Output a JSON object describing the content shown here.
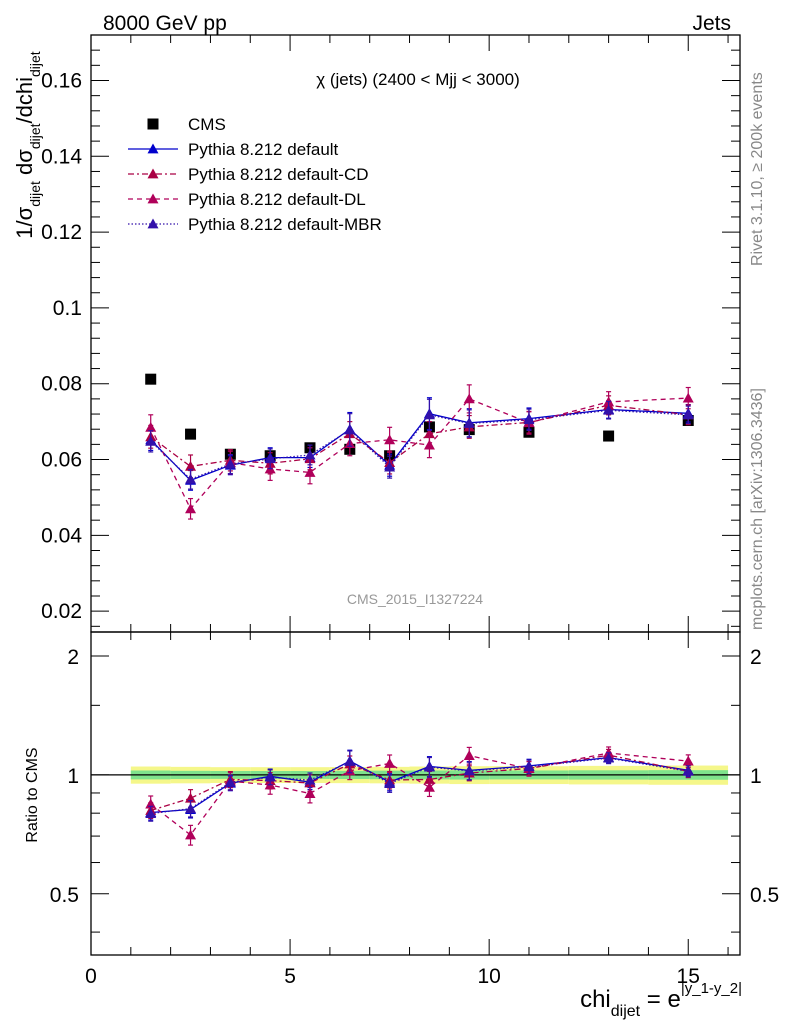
{
  "header": {
    "left": "8000 GeV pp",
    "right": "Jets"
  },
  "side_labels": {
    "top": "Rivet 3.1.10, ≥ 200k events",
    "bottom": "mcplots.cern.ch [arXiv:1306.3436]"
  },
  "watermark": "CMS_2015_I1327224",
  "chart_data": {
    "type": "scatter",
    "title": "χ (jets) (2400 < Mjj < 3000)",
    "x_axis": {
      "range": [
        0,
        16.3
      ],
      "ticks": [
        0,
        5,
        10,
        15
      ],
      "tick_labels": [
        "0",
        "5",
        "10",
        "15"
      ],
      "label_main": "chi",
      "label_sub": "dijet",
      "label_eq": " = e",
      "label_sup": "|y_1-y_2|"
    },
    "main_panel": {
      "y_axis": {
        "range": [
          0.0145,
          0.172
        ],
        "ticks": [
          0.02,
          0.04,
          0.06,
          0.08,
          0.1,
          0.12,
          0.14,
          0.16
        ],
        "tick_labels": [
          "0.02",
          "0.04",
          "0.06",
          "0.08",
          "0.1",
          "0.12",
          "0.14",
          "0.16"
        ],
        "label": "1/σdijet dσdijet/dchidijet"
      }
    },
    "ratio_panel": {
      "y_axis": {
        "scale": "log",
        "range": [
          0.35,
          2.3
        ],
        "ticks": [
          0.5,
          1,
          2
        ],
        "tick_labels": [
          "0.5",
          "1",
          "2"
        ],
        "label": "Ratio to CMS"
      }
    },
    "bins": [
      [
        1,
        2
      ],
      [
        2,
        3
      ],
      [
        3,
        4
      ],
      [
        4,
        5
      ],
      [
        5,
        6
      ],
      [
        6,
        7
      ],
      [
        7,
        8
      ],
      [
        8,
        9
      ],
      [
        9,
        10
      ],
      [
        10,
        12
      ],
      [
        12,
        14
      ],
      [
        14,
        16
      ]
    ],
    "data": {
      "name": "CMS",
      "x": [
        1.5,
        2.5,
        3.5,
        4.5,
        5.5,
        6.5,
        7.5,
        8.5,
        9.5,
        11,
        13,
        15
      ],
      "y": [
        0.0812,
        0.0667,
        0.0614,
        0.061,
        0.0631,
        0.0627,
        0.061,
        0.0686,
        0.0679,
        0.0672,
        0.0662,
        0.0703
      ],
      "ratio_band_inner": [
        0.026,
        0.024,
        0.023,
        0.023,
        0.023,
        0.024,
        0.025,
        0.026,
        0.027,
        0.026,
        0.027,
        0.028
      ],
      "ratio_band_outer": [
        0.05,
        0.048,
        0.046,
        0.046,
        0.046,
        0.047,
        0.048,
        0.05,
        0.052,
        0.052,
        0.054,
        0.056
      ]
    },
    "series": [
      {
        "name": "Pythia 8.212 default",
        "color": "#0000cc",
        "dash": "",
        "x": [
          1.5,
          2.5,
          3.5,
          4.5,
          5.5,
          6.5,
          7.5,
          8.5,
          9.5,
          11,
          13,
          15
        ],
        "y": [
          0.0652,
          0.0545,
          0.0585,
          0.0605,
          0.0605,
          0.068,
          0.0585,
          0.0721,
          0.0697,
          0.0708,
          0.0732,
          0.0722
        ],
        "err": [
          0.0028,
          0.0026,
          0.0025,
          0.0026,
          0.0026,
          0.0044,
          0.0029,
          0.0042,
          0.0037,
          0.0028,
          0.0023,
          0.0023
        ]
      },
      {
        "name": "Pythia 8.212 default-CD",
        "color": "#aa0044",
        "dash": "6,3,2,3",
        "x": [
          1.5,
          2.5,
          3.5,
          4.5,
          5.5,
          6.5,
          7.5,
          8.5,
          9.5,
          11,
          13,
          15
        ],
        "y": [
          0.066,
          0.0582,
          0.0598,
          0.059,
          0.0602,
          0.0668,
          0.0592,
          0.0668,
          0.0686,
          0.0698,
          0.0743,
          0.0718
        ],
        "err": [
          0.003,
          0.003,
          0.0028,
          0.0028,
          0.0029,
          0.0032,
          0.003,
          0.0032,
          0.003,
          0.0028,
          0.0025,
          0.0026
        ]
      },
      {
        "name": "Pythia 8.212 default-DL",
        "color": "#b0005a",
        "dash": "5,4",
        "x": [
          1.5,
          2.5,
          3.5,
          4.5,
          5.5,
          6.5,
          7.5,
          8.5,
          9.5,
          11,
          13,
          15
        ],
        "y": [
          0.0685,
          0.047,
          0.0592,
          0.0575,
          0.0566,
          0.0642,
          0.0652,
          0.0638,
          0.076,
          0.0697,
          0.0752,
          0.0762
        ],
        "err": [
          0.0033,
          0.0027,
          0.003,
          0.003,
          0.003,
          0.0032,
          0.0033,
          0.0033,
          0.0037,
          0.003,
          0.0027,
          0.0028
        ]
      },
      {
        "name": "Pythia 8.212 default-MBR",
        "color": "#3311aa",
        "dash": "1.5,2",
        "x": [
          1.5,
          2.5,
          3.5,
          4.5,
          5.5,
          6.5,
          7.5,
          8.5,
          9.5,
          11,
          13,
          15
        ],
        "y": [
          0.0648,
          0.0548,
          0.0588,
          0.0602,
          0.0612,
          0.0678,
          0.058,
          0.0718,
          0.0695,
          0.0705,
          0.073,
          0.0718
        ],
        "err": [
          0.0028,
          0.0026,
          0.0025,
          0.0026,
          0.0026,
          0.0043,
          0.0029,
          0.0041,
          0.0036,
          0.0028,
          0.0023,
          0.0023
        ]
      }
    ],
    "legend": {
      "placement": "top-left",
      "entries": [
        "CMS",
        "Pythia 8.212 default",
        "Pythia 8.212 default-CD",
        "Pythia 8.212 default-DL",
        "Pythia 8.212 default-MBR"
      ]
    },
    "colors": {
      "band_inner": "#7fe28c",
      "band_outer": "#f5f78a",
      "data_marker": "#000000"
    }
  }
}
